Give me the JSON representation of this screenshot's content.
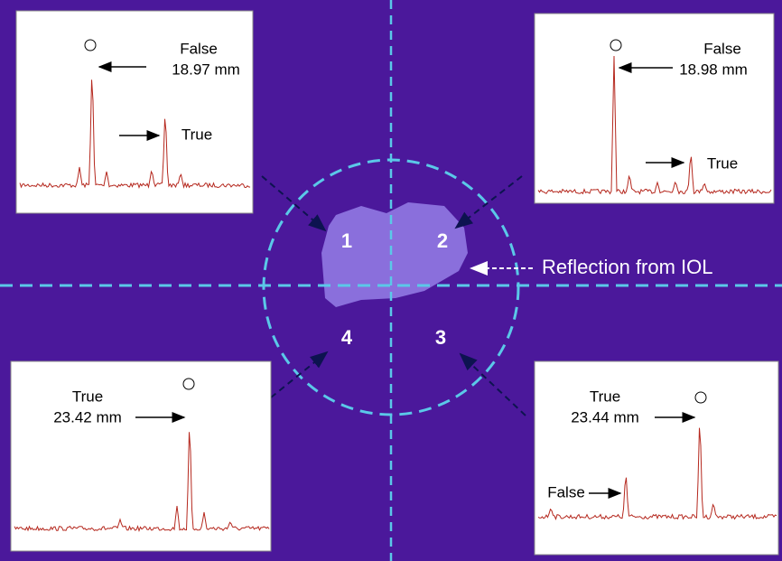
{
  "quadrants": [
    "1",
    "2",
    "3",
    "4"
  ],
  "reflection_label": "Reflection from IOL",
  "panels": [
    {
      "title": "False",
      "measurement": "18.97 mm",
      "secondary": "True"
    },
    {
      "title": "False",
      "measurement": "18.98 mm",
      "secondary": "True"
    },
    {
      "title": "True",
      "measurement": "23.42 mm"
    },
    {
      "title": "True",
      "measurement": "23.44 mm",
      "secondary": "False"
    }
  ]
}
